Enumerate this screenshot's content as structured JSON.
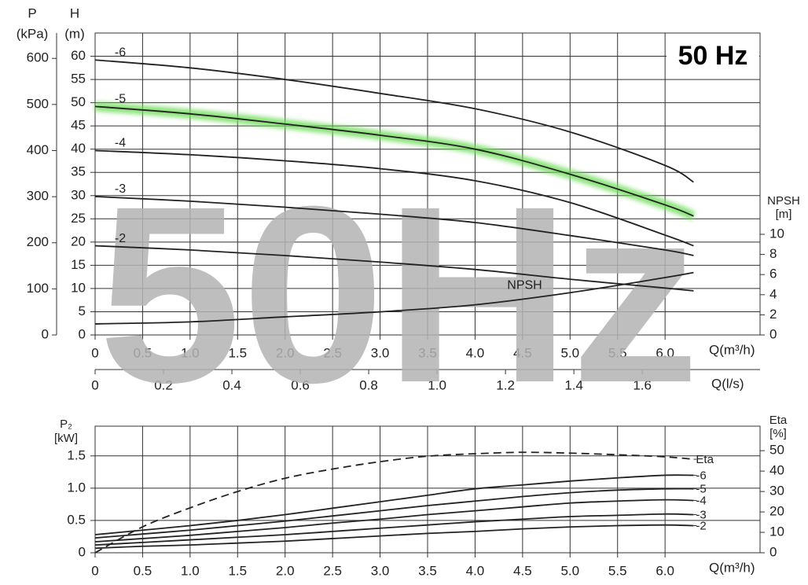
{
  "chart_data": [
    {
      "type": "line",
      "badge": "50 Hz",
      "watermark": "50Hz",
      "xlabel": "Q(m³/h)",
      "x2label": "Q(l/s)",
      "ylabel": "H",
      "yunit": "(m)",
      "plabel": "P",
      "punit": "(kPa)",
      "y2label": "NPSH",
      "y2unit": "[m]",
      "xlim": [
        0,
        7
      ],
      "xticks": [
        0,
        0.5,
        {
          "value": 1,
          "label": "1.0"
        },
        1.5,
        {
          "value": 2,
          "label": "2.0"
        },
        2.5,
        {
          "value": 3,
          "label": "3.0"
        },
        3.5,
        {
          "value": 4,
          "label": "4.0"
        },
        4.5,
        {
          "value": 5,
          "label": "5.0"
        },
        5.5,
        {
          "value": 6,
          "label": "6.0"
        }
      ],
      "x2lim": [
        0,
        1.9444
      ],
      "x2ticks": [
        0,
        0.2,
        0.4,
        0.6,
        0.8,
        {
          "value": 1,
          "label": "1.0"
        },
        1.2,
        1.4,
        1.6
      ],
      "ylim": [
        0,
        65
      ],
      "yticks": [
        0,
        5,
        10,
        15,
        20,
        25,
        30,
        35,
        40,
        45,
        50,
        55,
        60
      ],
      "plim": [
        0,
        655
      ],
      "pticks": [
        0,
        100,
        200,
        300,
        400,
        500,
        600
      ],
      "y2lim": [
        0,
        30
      ],
      "y2ticks": [
        0,
        2,
        4,
        6,
        8,
        10
      ],
      "grid": true,
      "x": [
        0,
        1,
        2,
        3,
        4,
        5,
        6,
        6.3
      ],
      "series": [
        {
          "name": "-6",
          "color": "#222222",
          "values": [
            59.2,
            57.5,
            55,
            52,
            48.7,
            43.7,
            36.5,
            32.9
          ]
        },
        {
          "name": "-5",
          "color": "#222222",
          "highlight": "#6fdc5a",
          "values": [
            49.2,
            47.6,
            45.4,
            43,
            40,
            34.6,
            28,
            25.6
          ]
        },
        {
          "name": "-4",
          "color": "#222222",
          "values": [
            39.7,
            38.8,
            37.5,
            35.8,
            33.2,
            28.5,
            21.5,
            19.2
          ]
        },
        {
          "name": "-3",
          "color": "#222222",
          "values": [
            29.8,
            28.8,
            27.5,
            26,
            24.2,
            21.4,
            18.3,
            17.1
          ]
        },
        {
          "name": "-2",
          "color": "#222222",
          "values": [
            19.2,
            18.3,
            17.1,
            15.7,
            14.1,
            12,
            10.1,
            9.5
          ]
        },
        {
          "name": "NPSH",
          "color": "#222222",
          "axis": "y2",
          "values": [
            1.1,
            1.3,
            1.8,
            2.3,
            3.0,
            4.2,
            5.7,
            6.2
          ]
        }
      ]
    },
    {
      "type": "line",
      "xlabel": "Q(m³/h)",
      "ylabel": "P₂",
      "yunit": "[kW]",
      "y2label": "Eta",
      "y2unit": "[%]",
      "xlim": [
        0,
        7
      ],
      "xticks": [
        0,
        0.5,
        {
          "value": 1,
          "label": "1.0"
        },
        1.5,
        {
          "value": 2,
          "label": "2.0"
        },
        2.5,
        {
          "value": 3,
          "label": "3.0"
        },
        3.5,
        {
          "value": 4,
          "label": "4.0"
        },
        4.5,
        {
          "value": 5,
          "label": "5.0"
        },
        5.5,
        {
          "value": 6,
          "label": "6.0"
        }
      ],
      "ylim": [
        0,
        1.96
      ],
      "yticks": [
        0,
        0.5,
        {
          "value": 1,
          "label": "1.0"
        },
        1.5
      ],
      "y2lim": [
        0,
        62
      ],
      "y2ticks": [
        0,
        10,
        20,
        30,
        40,
        50
      ],
      "grid": true,
      "x": [
        0,
        0.5,
        1,
        1.5,
        2,
        2.5,
        3,
        3.5,
        4,
        4.5,
        5,
        5.5,
        6,
        6.3
      ],
      "series": [
        {
          "name": "Eta",
          "color": "#222222",
          "axis": "y2",
          "dashed": true,
          "values": [
            0,
            12.7,
            22,
            30,
            36.5,
            41,
            44.6,
            47.3,
            48.5,
            49.2,
            48.8,
            48,
            47,
            45.8
          ]
        },
        {
          "name": "-6",
          "color": "#222222",
          "values": [
            0.28,
            0.35,
            0.42,
            0.5,
            0.59,
            0.69,
            0.79,
            0.89,
            0.99,
            1.05,
            1.11,
            1.16,
            1.2,
            1.2
          ]
        },
        {
          "name": "-5",
          "color": "#222222",
          "values": [
            0.23,
            0.29,
            0.35,
            0.42,
            0.49,
            0.57,
            0.65,
            0.73,
            0.8,
            0.87,
            0.93,
            0.97,
            0.99,
            0.99
          ]
        },
        {
          "name": "-4",
          "color": "#222222",
          "values": [
            0.17,
            0.22,
            0.27,
            0.33,
            0.39,
            0.46,
            0.52,
            0.59,
            0.65,
            0.71,
            0.77,
            0.8,
            0.82,
            0.81
          ]
        },
        {
          "name": "-3",
          "color": "#222222",
          "values": [
            0.12,
            0.16,
            0.2,
            0.24,
            0.28,
            0.33,
            0.38,
            0.43,
            0.48,
            0.52,
            0.56,
            0.58,
            0.6,
            0.59
          ]
        },
        {
          "name": "-2",
          "color": "#222222",
          "values": [
            0.07,
            0.1,
            0.12,
            0.15,
            0.18,
            0.22,
            0.26,
            0.3,
            0.33,
            0.37,
            0.4,
            0.42,
            0.43,
            0.42
          ]
        }
      ]
    }
  ]
}
